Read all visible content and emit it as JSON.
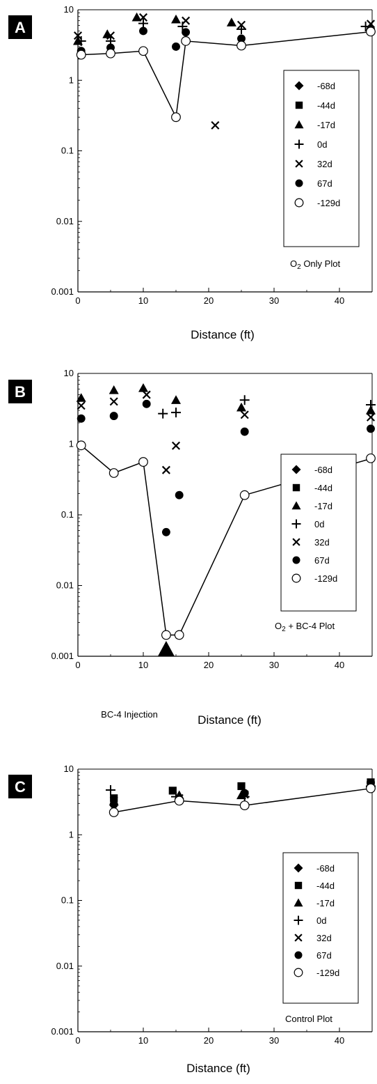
{
  "panels": [
    {
      "letter": "A",
      "plot_label": "Only Plot",
      "xlabel": "Distance (ft)",
      "legend": [
        "-68d",
        "-44d",
        "-17d",
        "0d",
        "32d",
        "67d",
        "-129d"
      ]
    },
    {
      "letter": "B",
      "plot_label": "+ BC-4 Plot",
      "xlabel": "Distance (ft)",
      "injection_label": "BC-4 Injection",
      "legend": [
        "-68d",
        "-44d",
        "-17d",
        "0d",
        "32d",
        "67d",
        "-129d"
      ]
    },
    {
      "letter": "C",
      "plot_label": "Control Plot",
      "xlabel": "Distance (ft)",
      "legend": [
        "-68d",
        "-44d",
        "-17d",
        "0d",
        "32d",
        "67d",
        "-129d"
      ]
    }
  ],
  "chart_data": [
    {
      "type": "scatter",
      "title": "O2 Only Plot",
      "xlabel": "Distance (ft)",
      "ylabel": "",
      "xlim": [
        0,
        45
      ],
      "ylim": [
        0.001,
        10
      ],
      "y_scale": "log",
      "x_ticks": [
        0,
        10,
        20,
        30,
        40
      ],
      "y_ticks": [
        "0.001",
        "0.01",
        "0.1",
        "1",
        "10"
      ],
      "legend_position": "center-right",
      "series": [
        {
          "name": "-68d",
          "marker": "diamond",
          "points": []
        },
        {
          "name": "-44d",
          "marker": "square",
          "points": []
        },
        {
          "name": "-17d",
          "marker": "triangle",
          "points": [
            [
              0,
              3.6
            ],
            [
              4.5,
              4.5
            ],
            [
              9,
              7.8
            ],
            [
              15,
              7.3
            ],
            [
              23.5,
              6.6
            ],
            [
              45,
              5.5
            ]
          ]
        },
        {
          "name": "0d",
          "marker": "plus",
          "points": [
            [
              0.5,
              3.6
            ],
            [
              5,
              3.6
            ],
            [
              10,
              6.4
            ],
            [
              16,
              5.8
            ],
            [
              25,
              5.3
            ],
            [
              44,
              5.8
            ]
          ]
        },
        {
          "name": "32d",
          "marker": "x",
          "points": [
            [
              0,
              4.3
            ],
            [
              5,
              4.3
            ],
            [
              10,
              7.8
            ],
            [
              16.5,
              7.0
            ],
            [
              21,
              0.23
            ],
            [
              25,
              6.1
            ],
            [
              45,
              6.3
            ]
          ]
        },
        {
          "name": "67d",
          "marker": "filled-circle",
          "points": [
            [
              0.5,
              2.6
            ],
            [
              5,
              2.9
            ],
            [
              10,
              5.0
            ],
            [
              15,
              3.0
            ],
            [
              16.5,
              4.8
            ],
            [
              25,
              3.9
            ],
            [
              45,
              5.3
            ]
          ]
        },
        {
          "name": "-129d",
          "marker": "open-circle",
          "line": true,
          "points": [
            [
              0.5,
              2.3
            ],
            [
              5,
              2.4
            ],
            [
              10,
              2.6
            ],
            [
              15,
              0.3
            ],
            [
              16.5,
              3.6
            ],
            [
              25,
              3.1
            ],
            [
              45,
              4.9
            ]
          ]
        }
      ]
    },
    {
      "type": "scatter",
      "title": "O2 + BC-4 Plot",
      "xlabel": "Distance (ft)",
      "ylabel": "",
      "xlim": [
        0,
        45
      ],
      "ylim": [
        0.001,
        10
      ],
      "y_scale": "log",
      "x_ticks": [
        0,
        10,
        20,
        30,
        40
      ],
      "y_ticks": [
        "0.001",
        "0.01",
        "0.1",
        "1",
        "10"
      ],
      "legend_position": "center-right",
      "annotation": {
        "text": "BC-4 Injection",
        "x": 13.5
      },
      "series": [
        {
          "name": "-68d",
          "marker": "diamond",
          "points": []
        },
        {
          "name": "-44d",
          "marker": "square",
          "points": []
        },
        {
          "name": "-17d",
          "marker": "triangle",
          "points": [
            [
              0.5,
              4.5
            ],
            [
              5.5,
              5.8
            ],
            [
              10,
              6.2
            ],
            [
              15,
              4.2
            ],
            [
              25,
              3.3
            ],
            [
              45,
              3.0
            ]
          ]
        },
        {
          "name": "0d",
          "marker": "plus",
          "points": [
            [
              13,
              2.7
            ],
            [
              15,
              2.8
            ],
            [
              25.5,
              4.2
            ],
            [
              45,
              3.6
            ]
          ]
        },
        {
          "name": "32d",
          "marker": "x",
          "points": [
            [
              0.5,
              3.5
            ],
            [
              5.5,
              4.0
            ],
            [
              10.5,
              5.0
            ],
            [
              13.5,
              0.43
            ],
            [
              15,
              0.95
            ],
            [
              25.5,
              2.6
            ],
            [
              45,
              2.4
            ]
          ]
        },
        {
          "name": "67d",
          "marker": "filled-circle",
          "points": [
            [
              0.5,
              2.3
            ],
            [
              5.5,
              2.5
            ],
            [
              10.5,
              3.7
            ],
            [
              13.5,
              0.057
            ],
            [
              15.5,
              0.19
            ],
            [
              25.5,
              1.5
            ],
            [
              45,
              1.65
            ]
          ]
        },
        {
          "name": "-129d",
          "marker": "open-circle",
          "line": true,
          "points": [
            [
              0.5,
              0.96
            ],
            [
              5.5,
              0.39
            ],
            [
              10,
              0.56
            ],
            [
              13.5,
              0.002
            ],
            [
              15.5,
              0.002
            ],
            [
              25.5,
              0.19
            ],
            [
              45,
              0.63
            ]
          ]
        }
      ]
    },
    {
      "type": "scatter",
      "title": "Control Plot",
      "xlabel": "Distance (ft)",
      "ylabel": "",
      "xlim": [
        0,
        45
      ],
      "ylim": [
        0.001,
        10
      ],
      "y_scale": "log",
      "x_ticks": [
        0,
        10,
        20,
        30,
        40
      ],
      "y_ticks": [
        "0.001",
        "0.01",
        "0.1",
        "1",
        "10"
      ],
      "legend_position": "center-right",
      "series": [
        {
          "name": "-68d",
          "marker": "diamond",
          "points": []
        },
        {
          "name": "-44d",
          "marker": "square",
          "points": [
            [
              5.5,
              3.6
            ],
            [
              14.5,
              4.7
            ],
            [
              25,
              5.5
            ],
            [
              45.5,
              6.3
            ]
          ]
        },
        {
          "name": "-17d",
          "marker": "triangle",
          "points": [
            [
              5.5,
              3.2
            ],
            [
              15.5,
              4.0
            ],
            [
              25,
              4.0
            ],
            [
              45,
              6.0
            ]
          ]
        },
        {
          "name": "0d",
          "marker": "plus",
          "points": [
            [
              5,
              4.8
            ],
            [
              15,
              3.8
            ],
            [
              25.5,
              3.8
            ],
            [
              45,
              5.5
            ]
          ]
        },
        {
          "name": "32d",
          "marker": "x",
          "points": [
            [
              5.5,
              3.3
            ],
            [
              15.5,
              3.6
            ],
            [
              25.5,
              4.1
            ],
            [
              45,
              5.8
            ]
          ]
        },
        {
          "name": "67d",
          "marker": "filled-circle",
          "points": [
            [
              5.5,
              2.9
            ],
            [
              15.5,
              3.5
            ],
            [
              25.5,
              4.3
            ],
            [
              45,
              6.2
            ]
          ]
        },
        {
          "name": "-129d",
          "marker": "open-circle",
          "line": true,
          "points": [
            [
              5.5,
              2.2
            ],
            [
              15.5,
              3.3
            ],
            [
              25.5,
              2.8
            ],
            [
              45,
              5.1
            ]
          ]
        }
      ]
    }
  ]
}
